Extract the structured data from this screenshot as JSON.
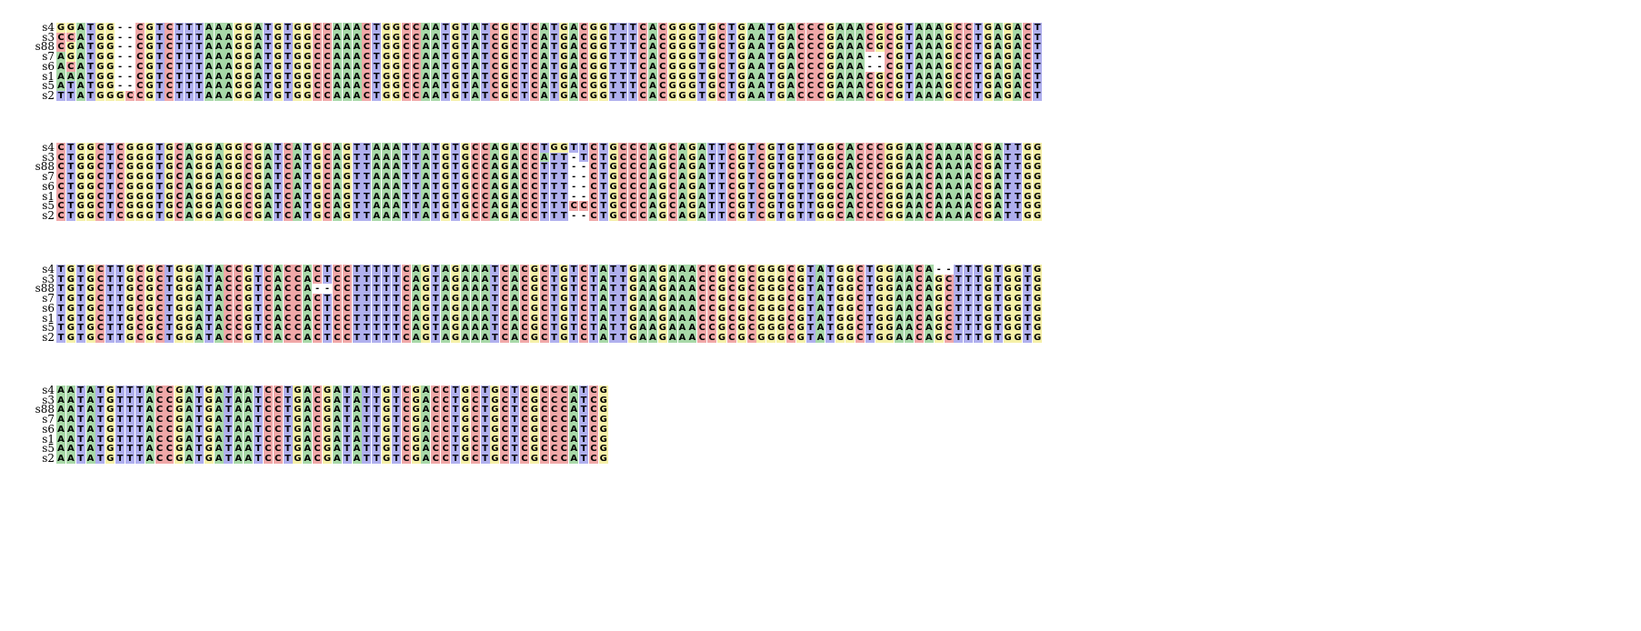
{
  "colors": {
    "A": "#a8d8a8",
    "C": "#f0a8a8",
    "G": "#f5f0a8",
    "T": "#b0b0ee",
    "-": "#ffffff"
  },
  "blocks": [
    {
      "rows": [
        {
          "name": "s4",
          "seq": "GGATGG--CGTCTTTAAAGGATGTGGCCAAACTGGCCAATGTATCGCTCATGACGGTTTCACGGGTGCTGAATGACCCGAAACGCGTAAAGCCTGAGACT"
        },
        {
          "name": "s3",
          "seq": "CCATGG--CGTCTTTAAAGGATGTGGCCAAACTGGCCAATGTATCGCTCATGACGGTTTCACGGGTGCTGAATGACCCGAAACGCGTAAAGCCTGAGACT"
        },
        {
          "name": "s88",
          "seq": "CGATGG--CGTCTTTAAAGGATGTGGCCAAACTGGCCAATGTATCGCTCATGACGGTTTCACGGGTGCTGAATGACCCGAAACGCGTAAAGCCTGAGACT"
        },
        {
          "name": "s7",
          "seq": "AGATGG--CGTCTTTAAAGGATGTGGCCAAACTGGCCAATGTATCGCTCATGACGGTTTCACGGGTGCTGAATGACCCGAAA--CGTAAAGCCTGAGACT"
        },
        {
          "name": "s6",
          "seq": "ACATGG--CGTCTTTAAAGGATGTGGCCAAACTGGCCAATGTATCGCTCATGACGGTTTCACGGGTGCTGAATGACCCGAAA--CGTAAAGCCTGAGACT"
        },
        {
          "name": "s1",
          "seq": "AAATGG--CGTCTTTAAAGGATGTGGCCAAACTGGCCAATGTATCGCTCATGACGGTTTCACGGGTGCTGAATGACCCGAAACGCGTAAAGCCTGAGACT"
        },
        {
          "name": "s5",
          "seq": "ATATGG--CGTCTTTAAAGGATGTGGCCAAACTGGCCAATGTATCGCTCATGACGGTTTCACGGGTGCTGAATGACCCGAAACGCGTAAAGCCTGAGACT"
        },
        {
          "name": "s2",
          "seq": "TTATGGGCCGTCTTTAAAGGATGTGGCCAAACTGGCCAATGTATCGCTCATGACGGTTTCACGGGTGCTGAATGACCCGAAACGCGTAAAGCCTGAGACT"
        }
      ]
    },
    {
      "rows": [
        {
          "name": "s4",
          "seq": "CTGGCTCGGGTGCAGGAGGCGATCATGCAGTTAAATTATGTGCCAGACCTGGTTCTGCCCAGCAGATTCGTCGTGTTGGCACCCGGAACAAAACGATTGG"
        },
        {
          "name": "s3",
          "seq": "CTGGCTCGGGTGCAGGAGGCGATCATGCAGTTAAATTATGTGCCAGACCATT-TCTGCCCAGCAGATTCGTCGTGTTGGCACCCGGAACAAAACGATTGG"
        },
        {
          "name": "s88",
          "seq": "CTGGCTCGGGTGCAGGAGGCGATCATGCAGTTAAATTATGTGCCAGACCTTT--CTGCCCAGCAGATTCGTCGTGTTGGCACCCGGAACAAAACGATTGG"
        },
        {
          "name": "s7",
          "seq": "CTGGCTCGGGTGCAGGAGGCGATCATGCAGTTAAATTATGTGCCAGACCTTT--CTGCCCAGCAGATTCGTCGTGTTGGCACCCGGAACAAAACGATTGG"
        },
        {
          "name": "s6",
          "seq": "CTGGCTCGGGTGCAGGAGGCGATCATGCAGTTAAATTATGTGCCAGACCTTT--CTGCCCAGCAGATTCGTCGTGTTGGCACCCGGAACAAAACGATTGG"
        },
        {
          "name": "s1",
          "seq": "CTGGCTCGGGTGCAGGAGGCGATCATGCAGTTAAATTATGTGCCAGACCTTT--CTGCCCAGCAGATTCGTCGTGTTGGCACCCGGAACAAAACGATTGG"
        },
        {
          "name": "s5",
          "seq": "CTGGCTCGGGTGCAGGAGGCGATCATGCAGTTAAATTATGTGCCAGACCTTTCCCTGCCCAGCAGATTCGTCGTGTTGGCACCCGGAACAAAACGATTGG"
        },
        {
          "name": "s2",
          "seq": "CTGGCTCGGGTGCAGGAGGCGATCATGCAGTTAAATTATGTGCCAGACCTTT--CTGCCCAGCAGATTCGTCGTGTTGGCACCCGGAACAAAACGATTGG"
        }
      ]
    },
    {
      "rows": [
        {
          "name": "s4",
          "seq": "TGTGCTTGCGCTGGATACCGTCACCACTCCTTTTTCAGTAGAAATCACGCTGTCTATTGAAGAAACCGCGCGGGCGTATGGCTGGAACA--TTTGTGGTG"
        },
        {
          "name": "s3",
          "seq": "TGTGCTTGCGCTGGATACCGTCACCACTCCTTTTTCAGTAGAAATCACGCTGTCTATTGAAGAAACCGCGCGGGCGTATGGCTGGAACAGCTTTGTGGTG"
        },
        {
          "name": "s88",
          "seq": "TGTGCTTGCGCTGGATACCGTCACCA--CCTTTTTCAGTAGAAATCACGCTGTCTATTGAAGAAACCGCGCGGGCGTATGGCTGGAACAGCTTTGTGGTG"
        },
        {
          "name": "s7",
          "seq": "TGTGCTTGCGCTGGATACCGTCACCACTCCTTTTTCAGTAGAAATCACGCTGTCTATTGAAGAAACCGCGCGGGCGTATGGCTGGAACAGCTTTGTGGTG"
        },
        {
          "name": "s6",
          "seq": "TGTGCTTGCGCTGGATACCGTCACCACTCCTTTTTCAGTAGAAATCACGCTGTCTATTGAAGAAACCGCGCGGGCGTATGGCTGGAACAGCTTTGTGGTG"
        },
        {
          "name": "s1",
          "seq": "TGTGCTTGCGCTGGATACCGTCACCACTCCTTTTTCAGTAGAAATCACGCTGTCTATTGAAGAAACCGCGCGGGCGTATGGCTGGAACAGCTTTGTGGTG"
        },
        {
          "name": "s5",
          "seq": "TGTGCTTGCGCTGGATACCGTCACCACTCCTTTTTCAGTAGAAATCACGCTGTCTATTGAAGAAACCGCGCGGGCGTATGGCTGGAACAGCTTTGTGGTG"
        },
        {
          "name": "s2",
          "seq": "TGTGCTTGCGCTGGATACCGTCACCACTCCTTTTTCAGTAGAAATCACGCTGTCTATTGAAGAAACCGCGCGGGCGTATGGCTGGAACAGCTTTGTGGTG"
        }
      ]
    },
    {
      "rows": [
        {
          "name": "s4",
          "seq": "AATATGTTTACCGATGATAATCCTGACGATATTGTCGACCTGCTGCTCGCCCATCG"
        },
        {
          "name": "s3",
          "seq": "AATATGTTTACCGATGATAATCCTGACGATATTGTCGACCTGCTGCTCGCCCATCG"
        },
        {
          "name": "s88",
          "seq": "AATATGTTTACCGATGATAATCCTGACGATATTGTCGACCTGCTGCTCGCCCATCG"
        },
        {
          "name": "s7",
          "seq": "AATATGTTTACCGATGATAATCCTGACGATATTGTCGACCTGCTGCTCGCCCATCG"
        },
        {
          "name": "s6",
          "seq": "AATATGTTTACCGATGATAATCCTGACGATATTGTCGACCTGCTGCTCGCCCATCG"
        },
        {
          "name": "s1",
          "seq": "AATATGTTTACCGATGATAATCCTGACGATATTGTCGACCTGCTGCTCGCCCATCG"
        },
        {
          "name": "s5",
          "seq": "AATATGTTTACCGATGATAATCCTGACGATATTGTCGACCTGCTGCTCGCCCATCG"
        },
        {
          "name": "s2",
          "seq": "AATATGTTTACCGATGATAATCCTGACGATATTGTCGACCTGCTGCTCGCCCATCG"
        }
      ]
    }
  ]
}
